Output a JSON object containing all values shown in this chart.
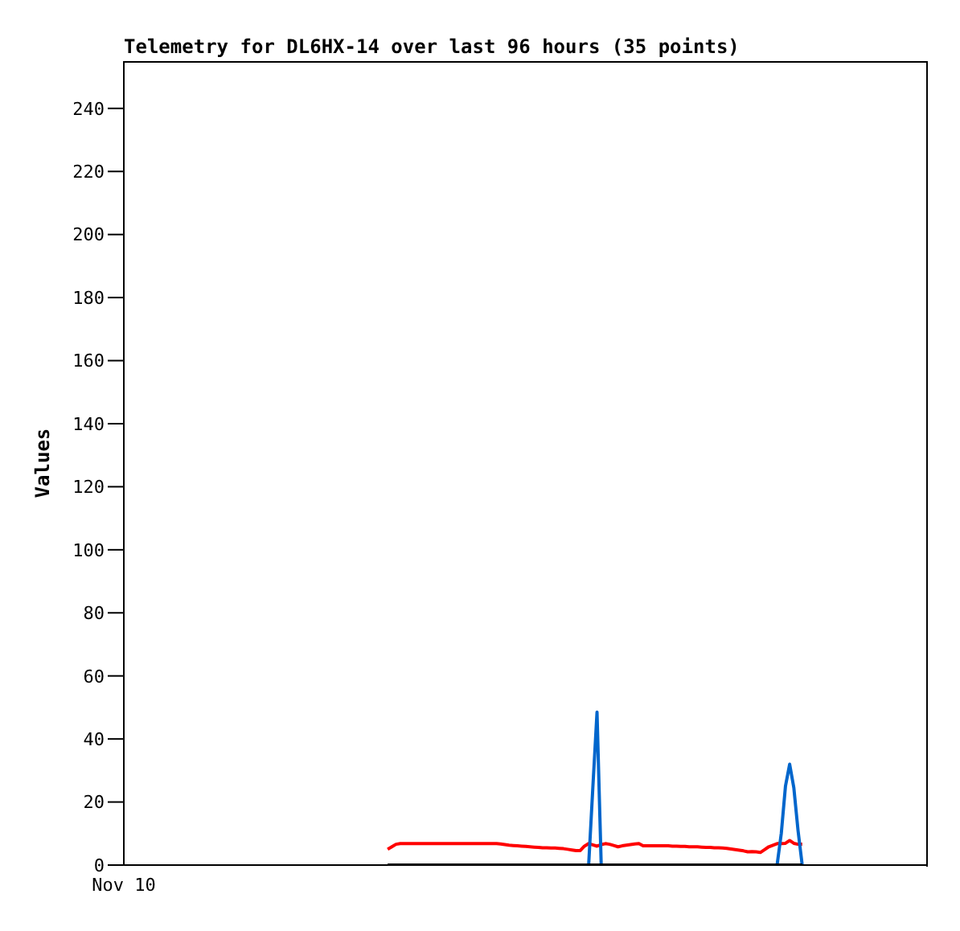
{
  "chart_data": {
    "type": "line",
    "title": "Telemetry for DL6HX-14 over last 96 hours (35 points)",
    "ylabel": "Values",
    "categories": [
      "Nov 10",
      null,
      null,
      null,
      null,
      null,
      null,
      null,
      null,
      null,
      null,
      null,
      null,
      null,
      null,
      null,
      null,
      null,
      null,
      null,
      null,
      null,
      null,
      null,
      null,
      null,
      null,
      null,
      null,
      null,
      null,
      null,
      null,
      null,
      null,
      null,
      null,
      null,
      null,
      null,
      null,
      null,
      null,
      null,
      null,
      null,
      null,
      null,
      null,
      null,
      null,
      null,
      null,
      null,
      null,
      null,
      null,
      null,
      null,
      null,
      null,
      null,
      null,
      null,
      null,
      null,
      null,
      null,
      null,
      null,
      null,
      null,
      null,
      null,
      null,
      null,
      null,
      null,
      null,
      null,
      null,
      null,
      null,
      null,
      null,
      null,
      null,
      null,
      null,
      null,
      null,
      null,
      null,
      null,
      null,
      null,
      null,
      null,
      null,
      null,
      null,
      null,
      null,
      null,
      null,
      null,
      null,
      null,
      null,
      null,
      null,
      null,
      null,
      null,
      null,
      null,
      null,
      null,
      null,
      null,
      null,
      null,
      null,
      null,
      null,
      null,
      null,
      null,
      null,
      null,
      null,
      null,
      null,
      null,
      null,
      null,
      null,
      null,
      null,
      null,
      null,
      null,
      null,
      null,
      null,
      null,
      null,
      null,
      null,
      null,
      null,
      null,
      null,
      null,
      null,
      null,
      null,
      null,
      null,
      null,
      null,
      null,
      null,
      null,
      null,
      null,
      null,
      null,
      null,
      null,
      null,
      null,
      null,
      null,
      null,
      null,
      null,
      null,
      null,
      null,
      null,
      null,
      null,
      null,
      null,
      null,
      null,
      null,
      null,
      null,
      null,
      null,
      null
    ],
    "ylim": [
      0,
      255
    ],
    "yticks": [
      0,
      20,
      40,
      60,
      80,
      100,
      120,
      140,
      160,
      180,
      200,
      220,
      240
    ],
    "grid": false,
    "marker": "none",
    "line_style": "solid",
    "series": [
      {
        "color": "#ff0000",
        "values": [
          null,
          null,
          null,
          null,
          null,
          null,
          null,
          null,
          null,
          null,
          null,
          null,
          null,
          null,
          null,
          null,
          null,
          null,
          null,
          null,
          null,
          null,
          null,
          null,
          null,
          null,
          null,
          null,
          null,
          null,
          null,
          null,
          null,
          null,
          null,
          null,
          null,
          null,
          null,
          null,
          null,
          null,
          null,
          null,
          null,
          null,
          null,
          null,
          null,
          null,
          null,
          null,
          null,
          null,
          null,
          null,
          null,
          null,
          null,
          null,
          null,
          null,
          null,
          5.0,
          5.8,
          6.6,
          6.8,
          6.8,
          6.8,
          6.8,
          6.8,
          6.8,
          6.8,
          6.8,
          6.8,
          6.8,
          6.8,
          6.8,
          6.8,
          6.8,
          6.8,
          6.8,
          6.8,
          6.8,
          6.8,
          6.8,
          6.8,
          6.8,
          6.8,
          6.8,
          6.7,
          6.5,
          6.3,
          6.2,
          6.1,
          6.0,
          5.9,
          5.8,
          5.7,
          5.6,
          5.5,
          5.5,
          5.4,
          5.4,
          5.3,
          5.2,
          5.0,
          4.8,
          4.6,
          4.6,
          6.0,
          6.8,
          6.4,
          6.0,
          6.5,
          6.8,
          6.6,
          6.2,
          5.8,
          6.1,
          6.3,
          6.5,
          6.7,
          6.8,
          6.1,
          6.1,
          6.1,
          6.1,
          6.1,
          6.1,
          6.1,
          6.0,
          6.0,
          5.9,
          5.9,
          5.8,
          5.8,
          5.8,
          5.7,
          5.6,
          5.6,
          5.5,
          5.5,
          5.4,
          5.3,
          5.1,
          4.9,
          4.7,
          4.5,
          4.2,
          4.3,
          4.2,
          4.0,
          4.9,
          5.8,
          6.3,
          6.8,
          6.8,
          6.9,
          7.8,
          6.9,
          6.6,
          6.6,
          null,
          null,
          null,
          null,
          null,
          null,
          null,
          null,
          null,
          null,
          null,
          null,
          null,
          null,
          null,
          null,
          null,
          null,
          null,
          null,
          null,
          null,
          null,
          null,
          null,
          null,
          null,
          null,
          null,
          null
        ]
      },
      {
        "color": "#0066cc",
        "values": [
          null,
          null,
          null,
          null,
          null,
          null,
          null,
          null,
          null,
          null,
          null,
          null,
          null,
          null,
          null,
          null,
          null,
          null,
          null,
          null,
          null,
          null,
          null,
          null,
          null,
          null,
          null,
          null,
          null,
          null,
          null,
          null,
          null,
          null,
          null,
          null,
          null,
          null,
          null,
          null,
          null,
          null,
          null,
          null,
          null,
          null,
          null,
          null,
          null,
          null,
          null,
          null,
          null,
          null,
          null,
          null,
          null,
          null,
          null,
          null,
          null,
          null,
          null,
          null,
          null,
          null,
          null,
          null,
          null,
          null,
          null,
          null,
          null,
          null,
          null,
          null,
          null,
          null,
          null,
          null,
          null,
          null,
          null,
          null,
          null,
          null,
          null,
          null,
          null,
          null,
          null,
          null,
          null,
          null,
          null,
          null,
          null,
          null,
          null,
          null,
          null,
          null,
          null,
          null,
          null,
          null,
          null,
          null,
          null,
          null,
          null,
          0,
          24.5,
          48.5,
          0,
          null,
          null,
          null,
          null,
          null,
          null,
          null,
          null,
          null,
          null,
          null,
          null,
          null,
          null,
          null,
          null,
          null,
          null,
          null,
          null,
          null,
          null,
          null,
          null,
          null,
          null,
          null,
          null,
          null,
          null,
          null,
          null,
          null,
          null,
          null,
          null,
          null,
          null,
          null,
          null,
          null,
          0,
          10,
          25,
          32,
          24.5,
          11,
          0,
          null,
          null,
          null,
          null,
          null,
          null,
          null,
          null,
          null,
          null,
          null,
          null,
          null,
          null,
          null,
          null,
          null,
          null,
          null,
          null,
          null,
          null,
          null,
          null,
          null,
          null,
          null,
          null,
          null,
          null
        ]
      },
      {
        "color": "#000000",
        "values": [
          null,
          null,
          null,
          null,
          null,
          null,
          null,
          null,
          null,
          null,
          null,
          null,
          null,
          null,
          null,
          null,
          null,
          null,
          null,
          null,
          null,
          null,
          null,
          null,
          null,
          null,
          null,
          null,
          null,
          null,
          null,
          null,
          null,
          null,
          null,
          null,
          null,
          null,
          null,
          null,
          null,
          null,
          null,
          null,
          null,
          null,
          null,
          null,
          null,
          null,
          null,
          null,
          null,
          null,
          null,
          null,
          null,
          null,
          null,
          null,
          null,
          null,
          null,
          0,
          0,
          0,
          0,
          0,
          0,
          0,
          0,
          0,
          0,
          0,
          0,
          0,
          0,
          0,
          0,
          0,
          0,
          0,
          0,
          0,
          0,
          0,
          0,
          0,
          0,
          0,
          0,
          0,
          0,
          0,
          0,
          0,
          0,
          0,
          0,
          0,
          0,
          0,
          0,
          0,
          0,
          0,
          0,
          0,
          0,
          0,
          0,
          0,
          0,
          0,
          0,
          0,
          0,
          0,
          0,
          0,
          0,
          0,
          0,
          0,
          0,
          0,
          0,
          0,
          0,
          0,
          0,
          0,
          0,
          0,
          0,
          0,
          0,
          0,
          0,
          0,
          0,
          0,
          0,
          0,
          0,
          0,
          0,
          0,
          0,
          0,
          0,
          0,
          0,
          0,
          0,
          0,
          0,
          0,
          0,
          0,
          0,
          0,
          0,
          null,
          null,
          null,
          null,
          null,
          null,
          null,
          null,
          null,
          null,
          null,
          null,
          null,
          null,
          null,
          null,
          null,
          null,
          null,
          null,
          null,
          null,
          null,
          null,
          null,
          null,
          null,
          null,
          null,
          null
        ]
      }
    ]
  }
}
